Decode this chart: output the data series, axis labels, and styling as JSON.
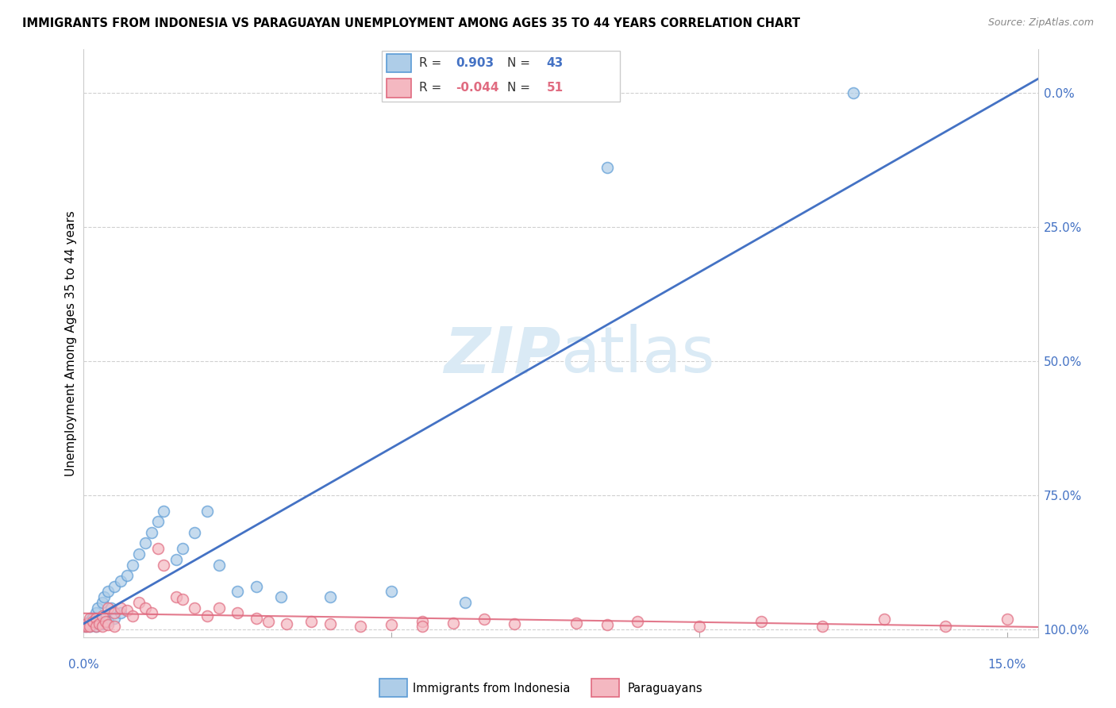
{
  "title": "IMMIGRANTS FROM INDONESIA VS PARAGUAYAN UNEMPLOYMENT AMONG AGES 35 TO 44 YEARS CORRELATION CHART",
  "source": "Source: ZipAtlas.com",
  "ylabel": "Unemployment Among Ages 35 to 44 years",
  "series1_label": "Immigrants from Indonesia",
  "series1_R": 0.903,
  "series1_N": 43,
  "series1_color": "#aecde8",
  "series1_edge_color": "#5b9bd5",
  "series1_line_color": "#4472c4",
  "series2_label": "Paraguayans",
  "series2_R": -0.044,
  "series2_N": 51,
  "series2_color": "#f4b8c1",
  "series2_edge_color": "#e06b80",
  "series2_line_color": "#e06b80",
  "watermark_color": "#daeaf5",
  "blue_x": [
    0.0003,
    0.0005,
    0.0008,
    0.001,
    0.001,
    0.0013,
    0.0015,
    0.0018,
    0.002,
    0.002,
    0.0022,
    0.0025,
    0.003,
    0.003,
    0.0033,
    0.0035,
    0.004,
    0.004,
    0.0045,
    0.005,
    0.005,
    0.006,
    0.006,
    0.007,
    0.008,
    0.009,
    0.01,
    0.011,
    0.012,
    0.013,
    0.015,
    0.016,
    0.018,
    0.02,
    0.022,
    0.025,
    0.028,
    0.032,
    0.04,
    0.05,
    0.062,
    0.085,
    0.125
  ],
  "blue_y": [
    0.005,
    0.008,
    0.01,
    0.015,
    0.005,
    0.02,
    0.02,
    0.01,
    0.03,
    0.005,
    0.04,
    0.015,
    0.05,
    0.01,
    0.06,
    0.025,
    0.07,
    0.015,
    0.04,
    0.08,
    0.02,
    0.09,
    0.03,
    0.1,
    0.12,
    0.14,
    0.16,
    0.18,
    0.2,
    0.22,
    0.13,
    0.15,
    0.18,
    0.22,
    0.12,
    0.07,
    0.08,
    0.06,
    0.06,
    0.07,
    0.05,
    0.86,
    1.0
  ],
  "pink_x": [
    0.0002,
    0.0004,
    0.0006,
    0.001,
    0.001,
    0.0015,
    0.002,
    0.002,
    0.0025,
    0.003,
    0.003,
    0.0035,
    0.004,
    0.004,
    0.005,
    0.005,
    0.006,
    0.007,
    0.008,
    0.009,
    0.01,
    0.011,
    0.012,
    0.013,
    0.015,
    0.016,
    0.018,
    0.02,
    0.022,
    0.025,
    0.028,
    0.03,
    0.033,
    0.037,
    0.04,
    0.045,
    0.05,
    0.055,
    0.06,
    0.065,
    0.07,
    0.08,
    0.085,
    0.09,
    0.1,
    0.11,
    0.12,
    0.13,
    0.14,
    0.15,
    0.055
  ],
  "pink_y": [
    0.005,
    0.01,
    0.005,
    0.02,
    0.005,
    0.015,
    0.02,
    0.005,
    0.01,
    0.025,
    0.005,
    0.015,
    0.04,
    0.008,
    0.03,
    0.005,
    0.04,
    0.035,
    0.025,
    0.05,
    0.04,
    0.03,
    0.15,
    0.12,
    0.06,
    0.055,
    0.04,
    0.025,
    0.04,
    0.03,
    0.02,
    0.015,
    0.01,
    0.015,
    0.01,
    0.005,
    0.008,
    0.015,
    0.012,
    0.018,
    0.01,
    0.012,
    0.008,
    0.015,
    0.005,
    0.015,
    0.005,
    0.018,
    0.005,
    0.018,
    0.005
  ],
  "xlim": [
    0.0,
    0.155
  ],
  "ylim": [
    -0.015,
    1.08
  ],
  "yticks": [
    0.0,
    0.25,
    0.5,
    0.75,
    1.0
  ],
  "ytick_labels": [
    "0.0%",
    "25.0%",
    "50.0%",
    "75.0%",
    "100.0%"
  ],
  "xtick_labels_blue": [
    "0.0%",
    "15.0%"
  ]
}
